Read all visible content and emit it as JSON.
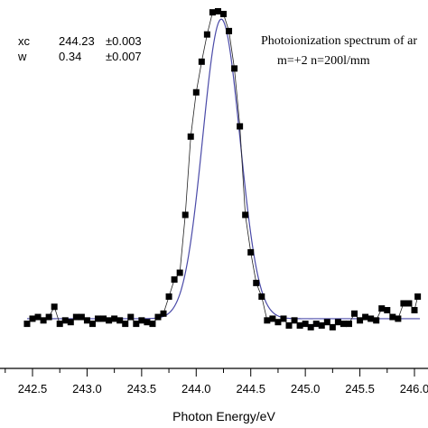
{
  "chart_data": {
    "type": "scatter",
    "title": "",
    "xlabel": "Photon Energy/eV",
    "ylabel": "",
    "xlim": [
      242.35,
      246.05
    ],
    "ylim": [
      0,
      1
    ],
    "grid": false,
    "legend": "none",
    "x_ticks": [
      "242.5",
      "243.0",
      "243.5",
      "244.0",
      "244.5",
      "245.0",
      "245.5",
      "246.0"
    ],
    "annotations": {
      "title_line1": "Photoionization spectrum of ar",
      "title_line2": "m=+2 n=200l/mm"
    },
    "fit_params": [
      {
        "name": "xc",
        "value": "244.23",
        "error": "±0.003"
      },
      {
        "name": "w",
        "value": "0.34",
        "error": "±0.007"
      }
    ],
    "fit_curve": {
      "type": "gaussian",
      "center": 244.23,
      "width": 0.34,
      "baseline": 0.085,
      "amplitude": 0.88,
      "color": "#4a4aa8"
    },
    "series": [
      {
        "marker": "square",
        "color": "#000000",
        "x": [
          242.45,
          242.5,
          242.55,
          242.6,
          242.65,
          242.7,
          242.75,
          242.8,
          242.85,
          242.9,
          242.95,
          243.0,
          243.05,
          243.1,
          243.15,
          243.2,
          243.25,
          243.3,
          243.35,
          243.4,
          243.45,
          243.5,
          243.55,
          243.6,
          243.65,
          243.7,
          243.75,
          243.8,
          243.85,
          243.9,
          243.95,
          244.0,
          244.05,
          244.1,
          244.15,
          244.2,
          244.25,
          244.3,
          244.35,
          244.4,
          244.45,
          244.5,
          244.55,
          244.6,
          244.65,
          244.7,
          244.75,
          244.8,
          244.85,
          244.9,
          244.95,
          245.0,
          245.05,
          245.1,
          245.15,
          245.2,
          245.25,
          245.3,
          245.35,
          245.4,
          245.45,
          245.5,
          245.55,
          245.6,
          245.65,
          245.7,
          245.75,
          245.8,
          245.85,
          245.9,
          245.95,
          246.0,
          246.03
        ],
        "y": [
          0.07,
          0.085,
          0.09,
          0.08,
          0.09,
          0.12,
          0.07,
          0.08,
          0.075,
          0.09,
          0.09,
          0.08,
          0.07,
          0.085,
          0.085,
          0.08,
          0.085,
          0.08,
          0.07,
          0.09,
          0.07,
          0.08,
          0.075,
          0.07,
          0.09,
          0.1,
          0.15,
          0.2,
          0.22,
          0.39,
          0.62,
          0.75,
          0.84,
          0.92,
          0.985,
          0.988,
          0.98,
          0.93,
          0.82,
          0.65,
          0.39,
          0.28,
          0.19,
          0.15,
          0.08,
          0.085,
          0.075,
          0.085,
          0.065,
          0.08,
          0.065,
          0.07,
          0.06,
          0.07,
          0.065,
          0.075,
          0.06,
          0.075,
          0.07,
          0.07,
          0.1,
          0.08,
          0.09,
          0.085,
          0.08,
          0.115,
          0.11,
          0.09,
          0.085,
          0.13,
          0.13,
          0.11,
          0.15
        ]
      }
    ]
  }
}
